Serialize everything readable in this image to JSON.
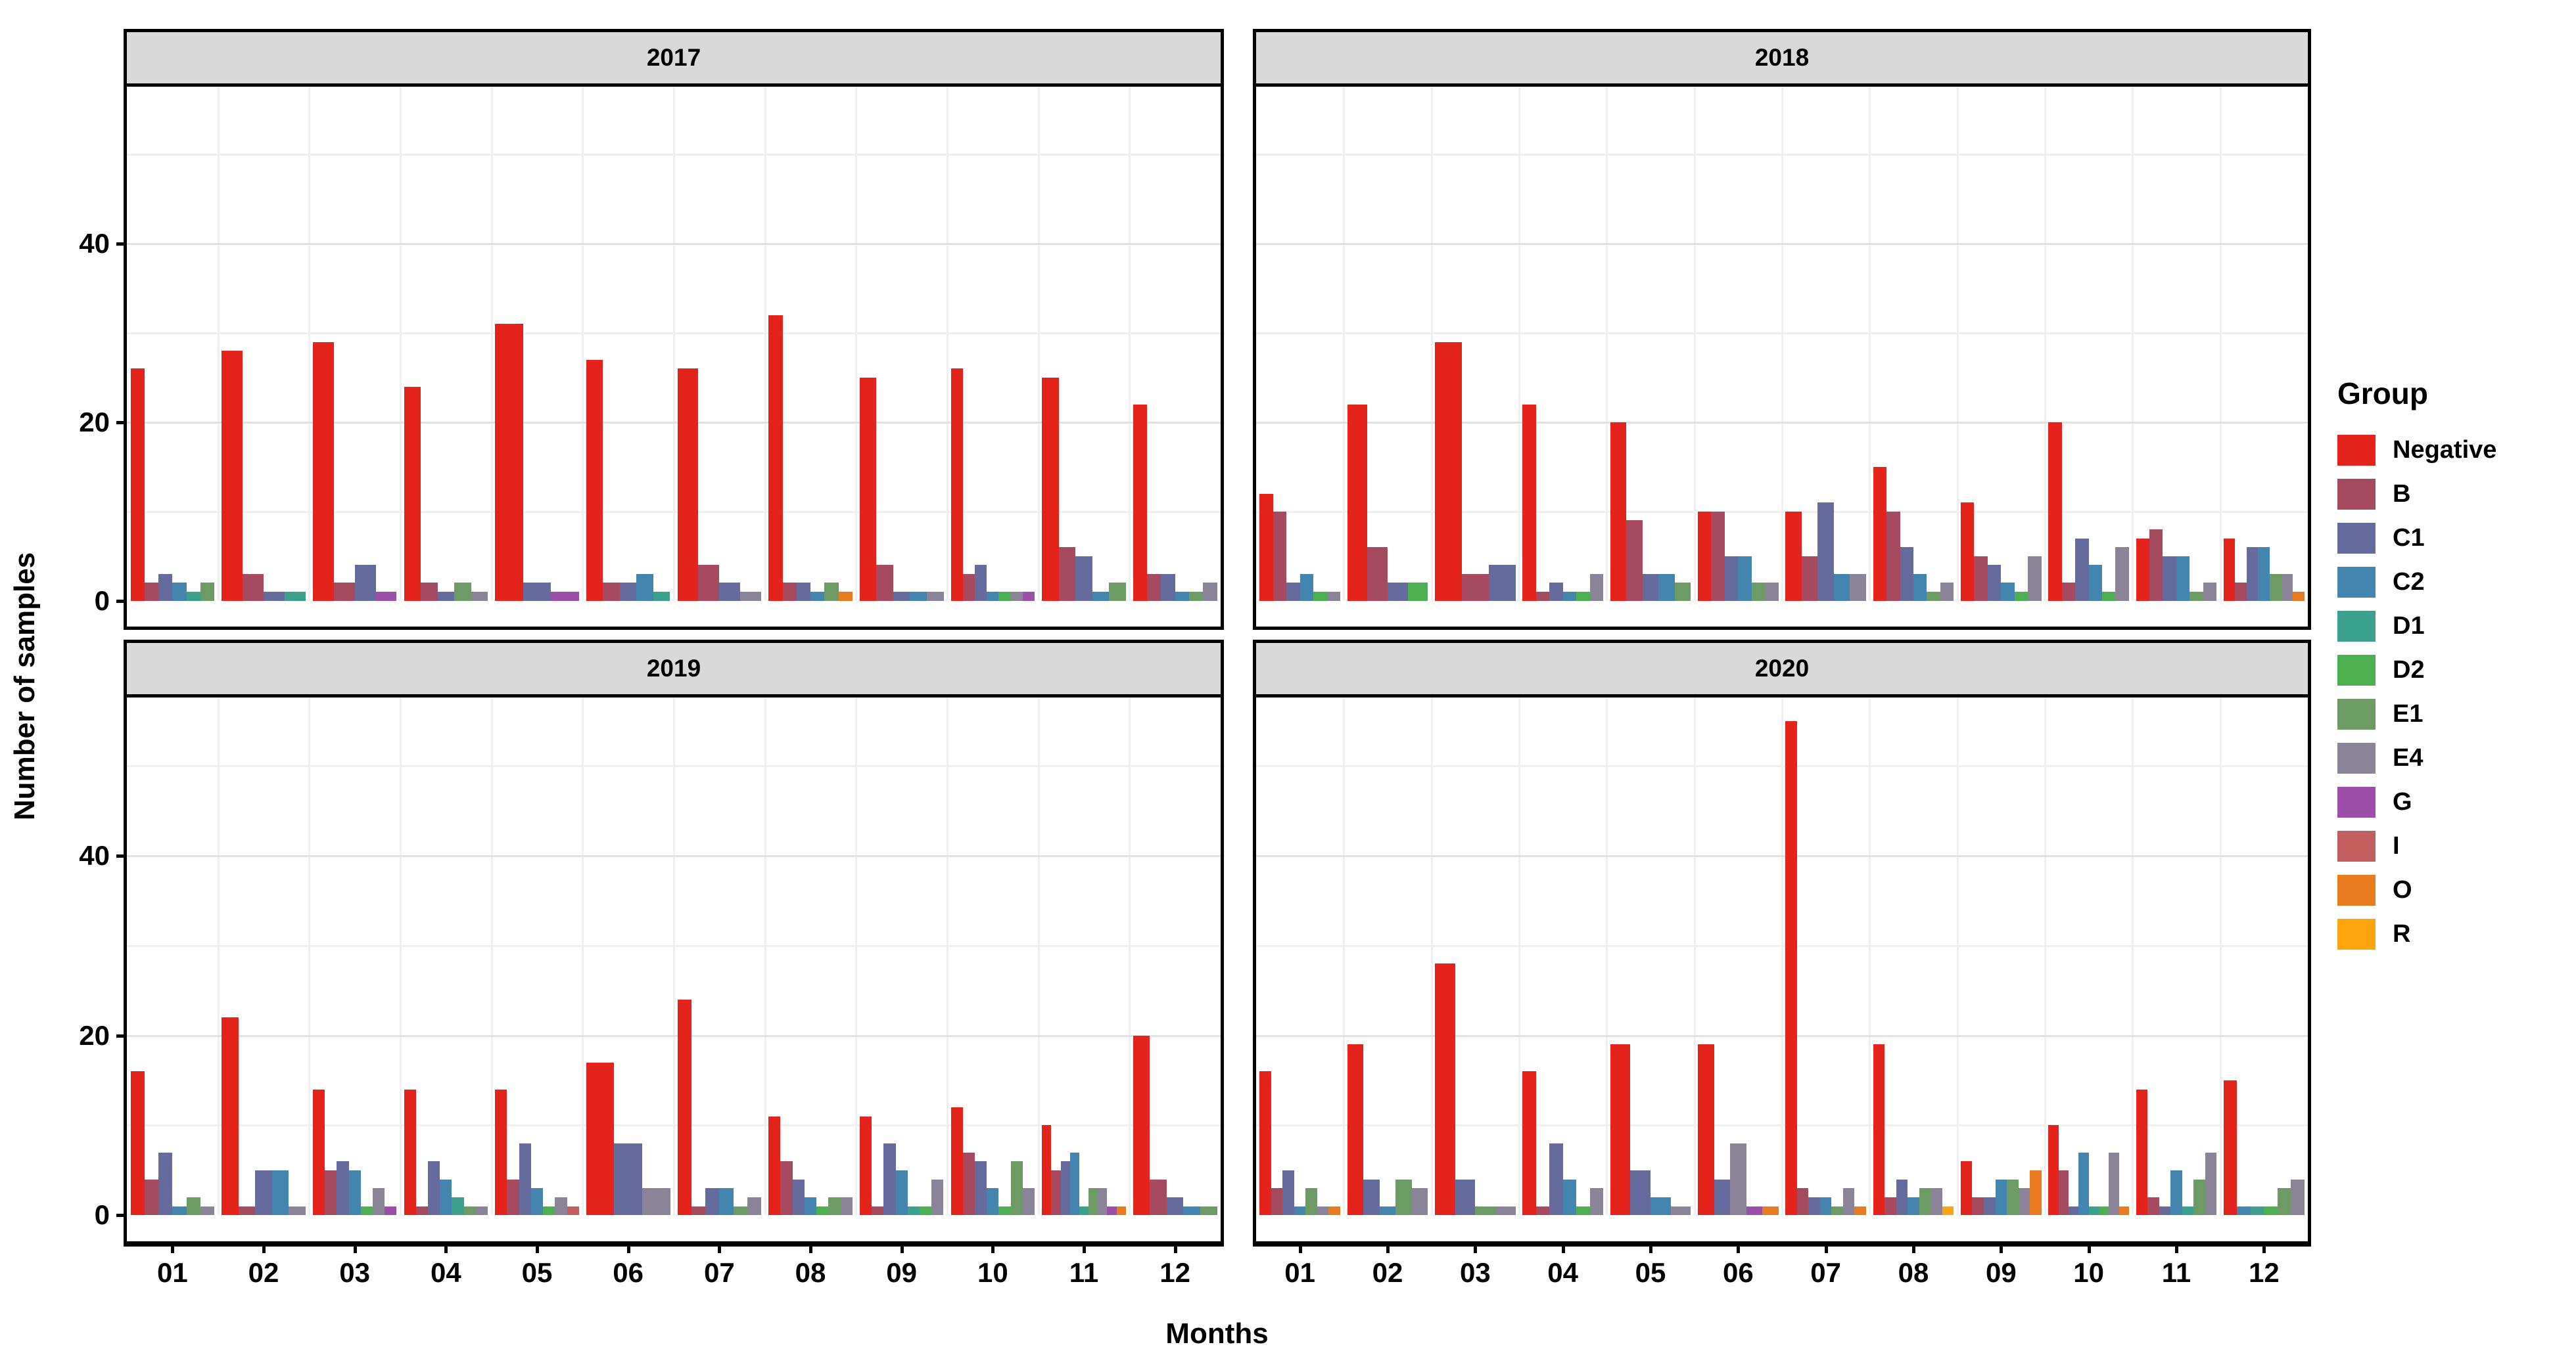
{
  "axes": {
    "x_title": "Months",
    "y_title": "Number of samples",
    "x_tick_labels": [
      "01",
      "02",
      "03",
      "04",
      "05",
      "06",
      "07",
      "08",
      "09",
      "10",
      "11",
      "12"
    ],
    "y_tick_values": [
      0,
      20,
      40
    ],
    "grid_major_color": "#E2E2E2",
    "grid_minor_color": "#F0F0F0",
    "strip_background": "#D9D9D9"
  },
  "legend": {
    "title": "Group",
    "items": [
      {
        "label": "Negative",
        "color": "#E4231C"
      },
      {
        "label": "B",
        "color": "#A64A5F"
      },
      {
        "label": "C1",
        "color": "#666B9D"
      },
      {
        "label": "C2",
        "color": "#4385AE"
      },
      {
        "label": "D1",
        "color": "#3CA08E"
      },
      {
        "label": "D2",
        "color": "#4CB050"
      },
      {
        "label": "E1",
        "color": "#6C9C63"
      },
      {
        "label": "E4",
        "color": "#8B8498"
      },
      {
        "label": "G",
        "color": "#9C4FA8"
      },
      {
        "label": "I",
        "color": "#C26060"
      },
      {
        "label": "O",
        "color": "#E87B1E"
      },
      {
        "label": "R",
        "color": "#FCA50F"
      }
    ]
  },
  "chart_data": {
    "type": "bar",
    "layout": "facet-grid-2x2-dodged",
    "facets": [
      "2017",
      "2018",
      "2019",
      "2020"
    ],
    "categories": [
      "01",
      "02",
      "03",
      "04",
      "05",
      "06",
      "07",
      "08",
      "09",
      "10",
      "11",
      "12"
    ],
    "groups": [
      "Negative",
      "B",
      "C1",
      "C2",
      "D1",
      "D2",
      "E1",
      "E4",
      "G",
      "I",
      "O",
      "R"
    ],
    "title": "",
    "xlabel": "Months",
    "ylabel": "Number of samples",
    "ylim": [
      0,
      57.6
    ],
    "baseline_offset_frac": 0.0479,
    "gridlines": [
      10,
      20,
      30,
      40,
      50
    ],
    "legend_position": "right",
    "values": {
      "2017": {
        "Negative": [
          26,
          28,
          29,
          24,
          31,
          27,
          26,
          32,
          25,
          26,
          25,
          22
        ],
        "B": [
          2,
          3,
          2,
          2,
          0,
          2,
          4,
          2,
          4,
          3,
          6,
          3
        ],
        "C1": [
          3,
          1,
          4,
          1,
          2,
          2,
          2,
          2,
          1,
          4,
          5,
          3
        ],
        "C2": [
          2,
          0,
          0,
          0,
          0,
          3,
          0,
          1,
          1,
          1,
          1,
          1
        ],
        "D1": [
          1,
          1,
          0,
          0,
          0,
          1,
          0,
          0,
          0,
          0,
          0,
          0
        ],
        "D2": [
          0,
          0,
          0,
          0,
          0,
          0,
          0,
          0,
          0,
          1,
          0,
          0
        ],
        "E1": [
          2,
          0,
          0,
          2,
          0,
          0,
          0,
          2,
          0,
          0,
          2,
          1
        ],
        "E4": [
          0,
          0,
          0,
          1,
          0,
          0,
          1,
          0,
          1,
          1,
          0,
          2
        ],
        "G": [
          0,
          0,
          1,
          0,
          1,
          0,
          0,
          0,
          0,
          1,
          0,
          0
        ],
        "I": [
          0,
          0,
          0,
          0,
          0,
          0,
          0,
          0,
          0,
          0,
          0,
          0
        ],
        "O": [
          0,
          0,
          0,
          0,
          0,
          0,
          0,
          1,
          0,
          0,
          0,
          0
        ],
        "R": [
          0,
          0,
          0,
          0,
          0,
          0,
          0,
          0,
          0,
          0,
          0,
          0
        ]
      },
      "2018": {
        "Negative": [
          12,
          22,
          29,
          22,
          20,
          10,
          10,
          15,
          11,
          20,
          7,
          7
        ],
        "B": [
          10,
          6,
          3,
          1,
          9,
          10,
          5,
          10,
          5,
          2,
          8,
          2
        ],
        "C1": [
          2,
          2,
          4,
          2,
          3,
          5,
          11,
          6,
          4,
          7,
          5,
          6
        ],
        "C2": [
          3,
          0,
          0,
          1,
          3,
          5,
          3,
          3,
          2,
          4,
          5,
          6
        ],
        "D1": [
          0,
          0,
          0,
          0,
          0,
          0,
          0,
          0,
          0,
          0,
          0,
          0
        ],
        "D2": [
          1,
          2,
          0,
          1,
          0,
          0,
          0,
          0,
          1,
          1,
          0,
          0
        ],
        "E1": [
          0,
          0,
          0,
          0,
          2,
          2,
          0,
          1,
          0,
          0,
          1,
          3
        ],
        "E4": [
          1,
          0,
          0,
          3,
          0,
          2,
          3,
          2,
          5,
          6,
          2,
          3
        ],
        "G": [
          0,
          0,
          0,
          0,
          0,
          0,
          0,
          0,
          0,
          0,
          0,
          0
        ],
        "I": [
          0,
          0,
          0,
          0,
          0,
          0,
          0,
          0,
          0,
          0,
          0,
          0
        ],
        "O": [
          0,
          0,
          0,
          0,
          0,
          0,
          0,
          0,
          0,
          0,
          0,
          1
        ],
        "R": [
          0,
          0,
          0,
          0,
          0,
          0,
          0,
          0,
          0,
          0,
          0,
          0
        ]
      },
      "2019": {
        "Negative": [
          16,
          22,
          14,
          14,
          14,
          17,
          24,
          11,
          11,
          12,
          10,
          20
        ],
        "B": [
          4,
          1,
          5,
          1,
          4,
          0,
          1,
          6,
          1,
          7,
          5,
          4
        ],
        "C1": [
          7,
          5,
          6,
          6,
          8,
          8,
          3,
          4,
          8,
          6,
          6,
          2
        ],
        "C2": [
          1,
          5,
          5,
          4,
          3,
          0,
          3,
          2,
          5,
          3,
          7,
          1
        ],
        "D1": [
          0,
          0,
          0,
          2,
          0,
          0,
          0,
          0,
          1,
          0,
          1,
          0
        ],
        "D2": [
          0,
          0,
          1,
          0,
          1,
          0,
          0,
          1,
          1,
          1,
          0,
          0
        ],
        "E1": [
          2,
          0,
          0,
          1,
          0,
          0,
          1,
          2,
          0,
          6,
          3,
          1
        ],
        "E4": [
          1,
          1,
          3,
          1,
          2,
          3,
          2,
          2,
          4,
          3,
          3,
          0
        ],
        "G": [
          0,
          0,
          1,
          0,
          0,
          0,
          0,
          0,
          0,
          0,
          1,
          0
        ],
        "I": [
          0,
          0,
          0,
          0,
          1,
          0,
          0,
          0,
          0,
          0,
          0,
          0
        ],
        "O": [
          0,
          0,
          0,
          0,
          0,
          0,
          0,
          0,
          0,
          0,
          1,
          0
        ],
        "R": [
          0,
          0,
          0,
          0,
          0,
          0,
          0,
          0,
          0,
          0,
          0,
          0
        ]
      },
      "2020": {
        "Negative": [
          16,
          19,
          28,
          16,
          19,
          19,
          55,
          19,
          6,
          10,
          14,
          15
        ],
        "B": [
          3,
          0,
          0,
          1,
          0,
          0,
          3,
          2,
          2,
          5,
          2,
          0
        ],
        "C1": [
          5,
          4,
          4,
          8,
          5,
          4,
          2,
          4,
          2,
          1,
          1,
          0
        ],
        "C2": [
          1,
          1,
          0,
          4,
          2,
          0,
          2,
          2,
          4,
          7,
          5,
          1
        ],
        "D1": [
          0,
          0,
          0,
          0,
          0,
          0,
          0,
          0,
          0,
          1,
          1,
          1
        ],
        "D2": [
          0,
          0,
          0,
          1,
          0,
          0,
          0,
          0,
          0,
          1,
          0,
          1
        ],
        "E1": [
          3,
          4,
          1,
          0,
          0,
          0,
          1,
          3,
          4,
          0,
          4,
          3
        ],
        "E4": [
          1,
          3,
          1,
          3,
          1,
          8,
          3,
          3,
          3,
          7,
          7,
          4
        ],
        "G": [
          0,
          0,
          0,
          0,
          0,
          1,
          0,
          0,
          0,
          0,
          0,
          0
        ],
        "I": [
          0,
          0,
          0,
          0,
          0,
          0,
          0,
          0,
          0,
          0,
          0,
          0
        ],
        "O": [
          1,
          0,
          0,
          0,
          0,
          1,
          1,
          0,
          5,
          1,
          0,
          0
        ],
        "R": [
          0,
          0,
          0,
          0,
          0,
          0,
          0,
          1,
          0,
          0,
          0,
          0
        ]
      }
    }
  }
}
